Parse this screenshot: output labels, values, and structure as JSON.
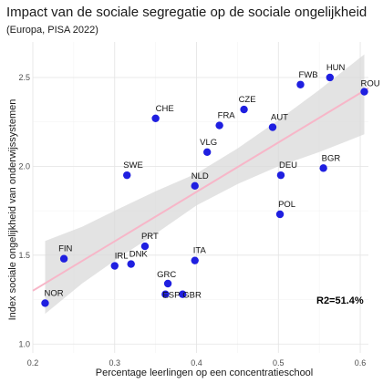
{
  "chart_data": {
    "type": "scatter",
    "title": "Impact van de sociale segregatie op de sociale ongelijkheid",
    "subtitle": "(Europa, PISA 2022)",
    "xlabel": "Percentage leerlingen op een concentratieschool",
    "ylabel": "Index sociale ongelijkheid van onderwijssystemen",
    "xlim": [
      0.2,
      0.61
    ],
    "ylim": [
      0.95,
      2.7
    ],
    "xticks": [
      "0.2",
      "0.3",
      "0.4",
      "0.5",
      "0.6"
    ],
    "yticks": [
      "1.0",
      "1.5",
      "2.0",
      "2.5"
    ],
    "grid": true,
    "point_color": "#1f1fe0",
    "trend_color": "#f7b6c8",
    "band_color": "#d9d9d9",
    "annotation": "R2=51.4%",
    "trend": {
      "x": [
        0.2,
        0.61
      ],
      "y": [
        1.3,
        2.44
      ]
    },
    "band": {
      "x": [
        0.215,
        0.26,
        0.3,
        0.35,
        0.4,
        0.45,
        0.5,
        0.55,
        0.605
      ],
      "lower": [
        1.17,
        1.34,
        1.47,
        1.62,
        1.78,
        1.9,
        2.0,
        2.08,
        2.18
      ],
      "upper": [
        1.58,
        1.66,
        1.75,
        1.86,
        1.96,
        2.1,
        2.26,
        2.43,
        2.63
      ]
    },
    "points": [
      {
        "label": "NOR",
        "x": 0.215,
        "y": 1.23
      },
      {
        "label": "FIN",
        "x": 0.238,
        "y": 1.48
      },
      {
        "label": "IRL",
        "x": 0.3,
        "y": 1.44
      },
      {
        "label": "DNK",
        "x": 0.32,
        "y": 1.45
      },
      {
        "label": "PRT",
        "x": 0.337,
        "y": 1.55
      },
      {
        "label": "SWE",
        "x": 0.315,
        "y": 1.95
      },
      {
        "label": "CHE",
        "x": 0.35,
        "y": 2.27
      },
      {
        "label": "ESP",
        "x": 0.362,
        "y": 1.28
      },
      {
        "label": "GRC",
        "x": 0.365,
        "y": 1.34
      },
      {
        "label": "GBR",
        "x": 0.383,
        "y": 1.28
      },
      {
        "label": "ITA",
        "x": 0.398,
        "y": 1.47
      },
      {
        "label": "NLD",
        "x": 0.398,
        "y": 1.89
      },
      {
        "label": "VLG",
        "x": 0.413,
        "y": 2.08
      },
      {
        "label": "FRA",
        "x": 0.428,
        "y": 2.23
      },
      {
        "label": "CZE",
        "x": 0.458,
        "y": 2.32
      },
      {
        "label": "AUT",
        "x": 0.493,
        "y": 2.22
      },
      {
        "label": "DEU",
        "x": 0.503,
        "y": 1.95
      },
      {
        "label": "POL",
        "x": 0.502,
        "y": 1.73
      },
      {
        "label": "BGR",
        "x": 0.555,
        "y": 1.99
      },
      {
        "label": "FWB",
        "x": 0.527,
        "y": 2.46
      },
      {
        "label": "HUN",
        "x": 0.563,
        "y": 2.5
      },
      {
        "label": "ROU",
        "x": 0.605,
        "y": 2.42
      }
    ]
  }
}
